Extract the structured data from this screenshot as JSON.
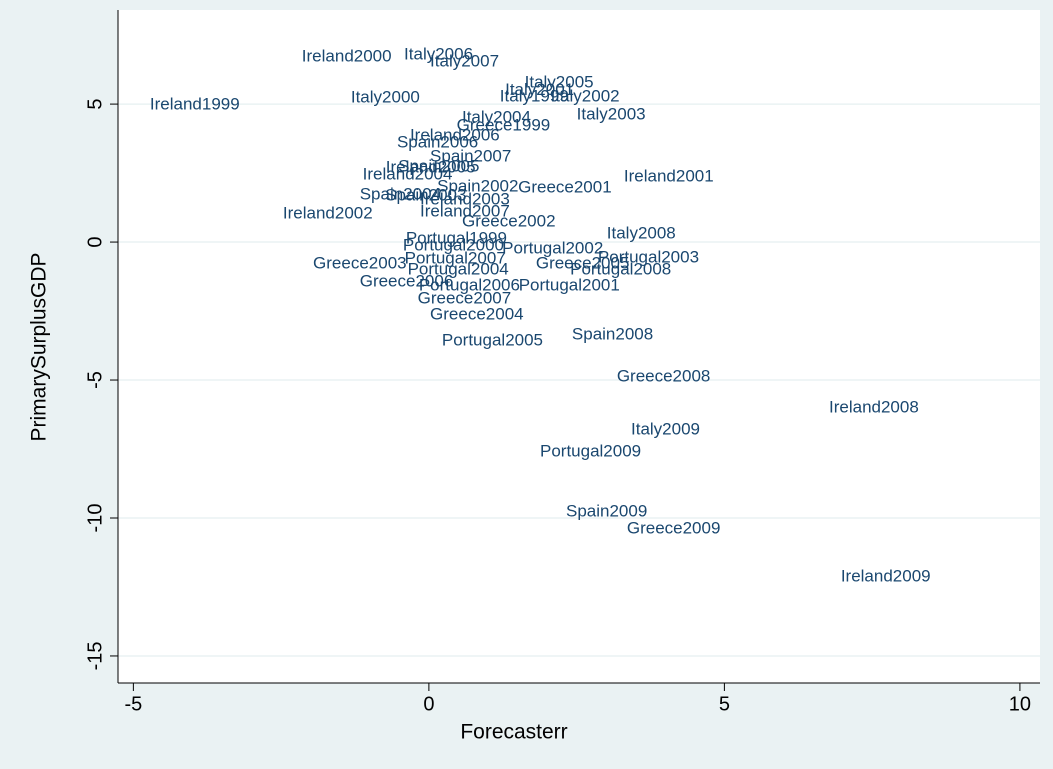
{
  "chart_data": {
    "type": "scatter",
    "x_label": "Forecasterr",
    "y_label": "PrimarySurplusGDP",
    "xlim": [
      -5.26,
      10.34
    ],
    "ylim": [
      -15.98,
      8.41
    ],
    "xticks": [
      -5,
      0,
      5,
      10
    ],
    "yticks": [
      -15,
      -10,
      -5,
      0,
      5
    ],
    "grid": true,
    "color": "#1a476f",
    "labels": [
      "Ireland1999",
      "Ireland2000",
      "Italy2006",
      "Italy2007",
      "Italy2000",
      "Italy2005",
      "Italy2001",
      "Italy1999",
      "Italy2002",
      "Italy2003",
      "Italy2004",
      "Greece1999",
      "Ireland2006",
      "Spain2006",
      "Spain2007",
      "Ireland2005",
      "Spain2005",
      "Ireland2004",
      "Ireland2001",
      "Greece2001",
      "Spain2002",
      "Spain2004",
      "Spain2003",
      "Ireland2003",
      "Ireland2002",
      "Ireland2007",
      "Greece2002",
      "Italy2008",
      "Portugal1999",
      "Portugal2000",
      "Portugal2002",
      "Greece2003",
      "Portugal2007",
      "Greece2005",
      "Portugal2003",
      "Portugal2008",
      "Portugal2004",
      "Greece2006",
      "Portugal2006",
      "Portugal2001",
      "Greece2007",
      "Greece2004",
      "Portugal2005",
      "Spain2008",
      "Greece2008",
      "Ireland2008",
      "Italy2009",
      "Portugal2009",
      "Spain2009",
      "Greece2009",
      "Ireland2009"
    ],
    "x": [
      -4.72,
      -2.15,
      -0.42,
      0.02,
      -1.32,
      1.62,
      1.29,
      1.2,
      2.06,
      2.5,
      0.56,
      0.47,
      -0.32,
      -0.54,
      0.02,
      -0.73,
      -0.52,
      -1.12,
      3.3,
      1.51,
      0.14,
      -1.17,
      -0.74,
      -0.15,
      -2.47,
      -0.15,
      0.56,
      3.01,
      -0.39,
      -0.44,
      1.24,
      -1.96,
      -0.41,
      1.81,
      2.86,
      2.39,
      -0.36,
      -1.17,
      -0.17,
      1.52,
      -0.19,
      0.02,
      0.22,
      2.42,
      3.18,
      6.77,
      3.42,
      1.88,
      2.32,
      3.35,
      6.97
    ],
    "values": [
      4.96,
      6.7,
      6.78,
      6.52,
      5.22,
      5.76,
      5.5,
      5.25,
      5.25,
      4.6,
      4.49,
      4.2,
      3.84,
      3.59,
      3.08,
      2.68,
      2.72,
      2.43,
      2.36,
      1.96,
      1.99,
      1.7,
      1.67,
      1.52,
      1.01,
      1.09,
      0.72,
      0.29,
      0.11,
      -0.14,
      -0.25,
      -0.8,
      -0.62,
      -0.8,
      -0.58,
      -1.01,
      -1.01,
      -1.45,
      -1.59,
      -1.59,
      -2.07,
      -2.64,
      -3.59,
      -3.37,
      -4.89,
      -6.01,
      -6.81,
      -7.61,
      -9.78,
      -10.4,
      -12.14
    ]
  }
}
